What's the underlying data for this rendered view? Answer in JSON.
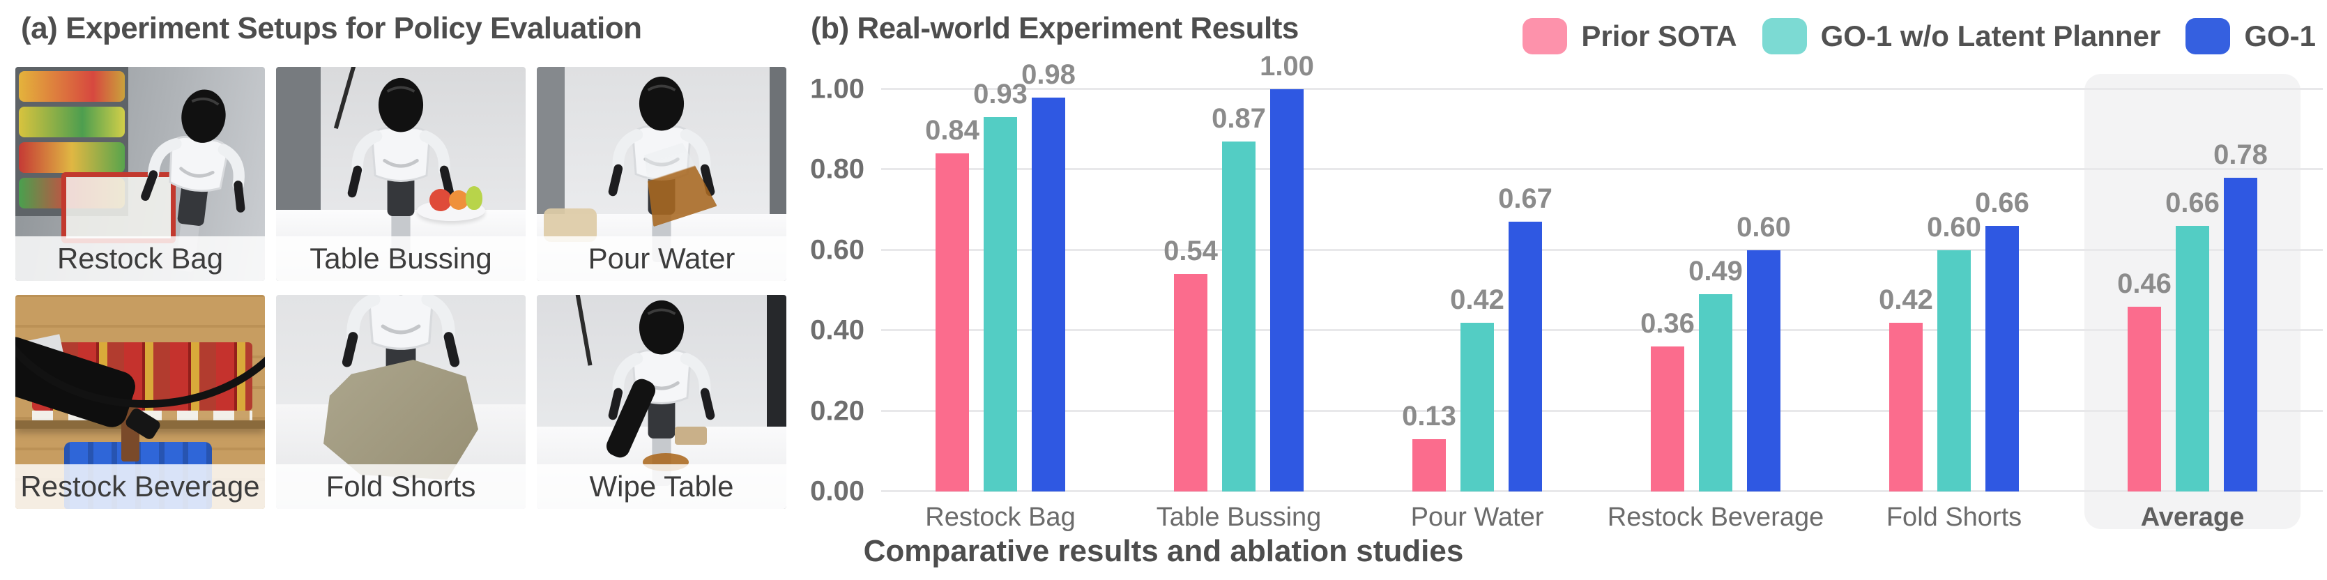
{
  "panel_a": {
    "title": "(a) Experiment Setups for Policy Evaluation",
    "photos": [
      {
        "label": "Restock Bag"
      },
      {
        "label": "Table Bussing"
      },
      {
        "label": "Pour Water"
      },
      {
        "label": "Restock Beverage"
      },
      {
        "label": "Fold Shorts"
      },
      {
        "label": "Wipe Table"
      }
    ]
  },
  "panel_b": {
    "title": "(b) Real-world Experiment Results",
    "caption": "Comparative results and ablation studies",
    "legend": [
      {
        "label": "Prior SOTA",
        "color": "#FD92AB"
      },
      {
        "label": "GO-1 w/o Latent Planner",
        "color": "#7CDAD3"
      },
      {
        "label": "GO-1",
        "color": "#3560E0"
      }
    ]
  },
  "chart_data": {
    "type": "bar",
    "title": "(b) Real-world Experiment Results",
    "categories": [
      "Restock Bag",
      "Table Bussing",
      "Pour Water",
      "Restock Beverage",
      "Fold Shorts",
      "Average"
    ],
    "highlight_category": "Average",
    "series": [
      {
        "name": "Prior SOTA",
        "color": "#FB6C8D",
        "values": [
          0.84,
          0.54,
          0.13,
          0.36,
          0.42,
          0.46
        ]
      },
      {
        "name": "GO-1 w/o Latent Planner",
        "color": "#53CDC4",
        "values": [
          0.93,
          0.87,
          0.42,
          0.49,
          0.6,
          0.66
        ]
      },
      {
        "name": "GO-1",
        "color": "#2F58E2",
        "values": [
          0.98,
          1.0,
          0.67,
          0.6,
          0.66,
          0.78
        ]
      }
    ],
    "y_ticks": [
      "0.00",
      "0.20",
      "0.40",
      "0.60",
      "0.80",
      "1.00"
    ],
    "ylim": [
      0,
      1.0
    ],
    "grid": "horizontal",
    "legend_position": "top-right",
    "value_labels": true,
    "xlabel": "",
    "ylabel": ""
  }
}
